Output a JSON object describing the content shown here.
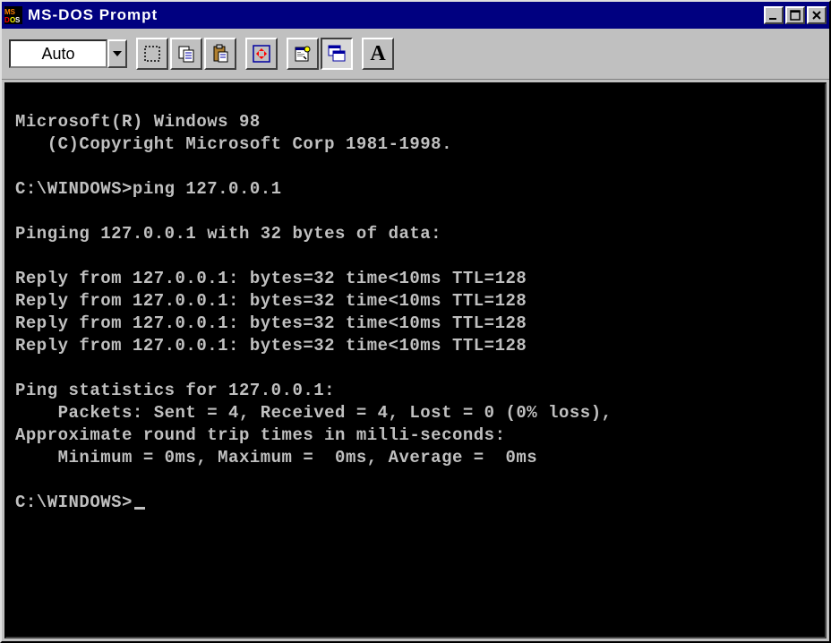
{
  "window": {
    "title": "MS-DOS Prompt",
    "titlebar_bg": "#000080",
    "titlebar_fg": "#ffffff",
    "chrome_bg": "#c0c0c0"
  },
  "toolbar": {
    "font_selector_value": "Auto",
    "buttons": {
      "mark": "mark",
      "copy": "copy",
      "paste": "paste",
      "fullscreen": "fullscreen",
      "properties": "properties",
      "background": "background",
      "font": "A"
    }
  },
  "terminal": {
    "bg": "#000000",
    "fg": "#c0c0c0",
    "font_family": "Courier New",
    "font_size_pt": 14,
    "lines": [
      "Microsoft(R) Windows 98",
      "   (C)Copyright Microsoft Corp 1981-1998.",
      "",
      "C:\\WINDOWS>ping 127.0.0.1",
      "",
      "Pinging 127.0.0.1 with 32 bytes of data:",
      "",
      "Reply from 127.0.0.1: bytes=32 time<10ms TTL=128",
      "Reply from 127.0.0.1: bytes=32 time<10ms TTL=128",
      "Reply from 127.0.0.1: bytes=32 time<10ms TTL=128",
      "Reply from 127.0.0.1: bytes=32 time<10ms TTL=128",
      "",
      "Ping statistics for 127.0.0.1:",
      "    Packets: Sent = 4, Received = 4, Lost = 0 (0% loss),",
      "Approximate round trip times in milli-seconds:",
      "    Minimum = 0ms, Maximum =  0ms, Average =  0ms",
      "",
      "C:\\WINDOWS>"
    ],
    "prompt": "C:\\WINDOWS>",
    "cursor_visible": true
  }
}
